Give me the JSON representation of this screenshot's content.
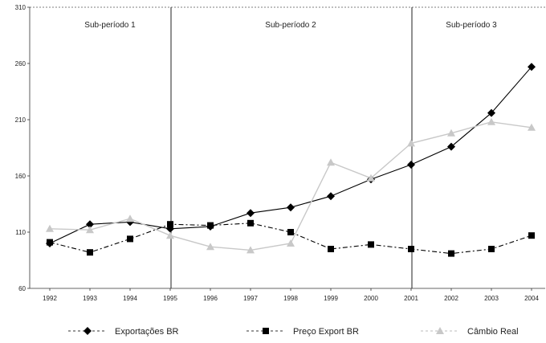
{
  "chart_data": {
    "type": "line",
    "categories": [
      "1992",
      "1993",
      "1994",
      "1995",
      "1996",
      "1997",
      "1998",
      "1999",
      "2000",
      "2001",
      "2002",
      "2003",
      "2004"
    ],
    "ylim": [
      60,
      310
    ],
    "yticks": [
      60,
      110,
      160,
      210,
      260,
      310
    ],
    "grid": false,
    "legend_position": "bottom",
    "periods": [
      {
        "label": "Sub-período 1",
        "start": "1992",
        "end": "1995"
      },
      {
        "label": "Sub-período 2",
        "start": "1995",
        "end": "2001"
      },
      {
        "label": "Sub-período 3",
        "start": "2001",
        "end": "2004"
      }
    ],
    "period_dividers": [
      "1995",
      "2001"
    ],
    "series": [
      {
        "name": "Exportações BR",
        "color": "#000000",
        "line_style": "solid",
        "legend_line_style": "dashed",
        "marker": "diamond",
        "values": [
          100,
          117,
          119,
          113,
          115,
          127,
          132,
          142,
          157,
          170,
          186,
          216,
          257
        ]
      },
      {
        "name": "Preço Export BR",
        "color": "#000000",
        "line_style": "dashdot",
        "legend_line_style": "dashed",
        "marker": "square",
        "values": [
          101,
          92,
          104,
          117,
          116,
          118,
          110,
          95,
          99,
          95,
          91,
          95,
          107
        ]
      },
      {
        "name": "Câmbio Real",
        "color": "#c8c8c8",
        "line_style": "solid",
        "legend_line_style": "dashed",
        "marker": "triangle",
        "values": [
          113,
          112,
          122,
          107,
          97,
          94,
          100,
          172,
          158,
          189,
          198,
          208,
          203
        ]
      }
    ]
  }
}
